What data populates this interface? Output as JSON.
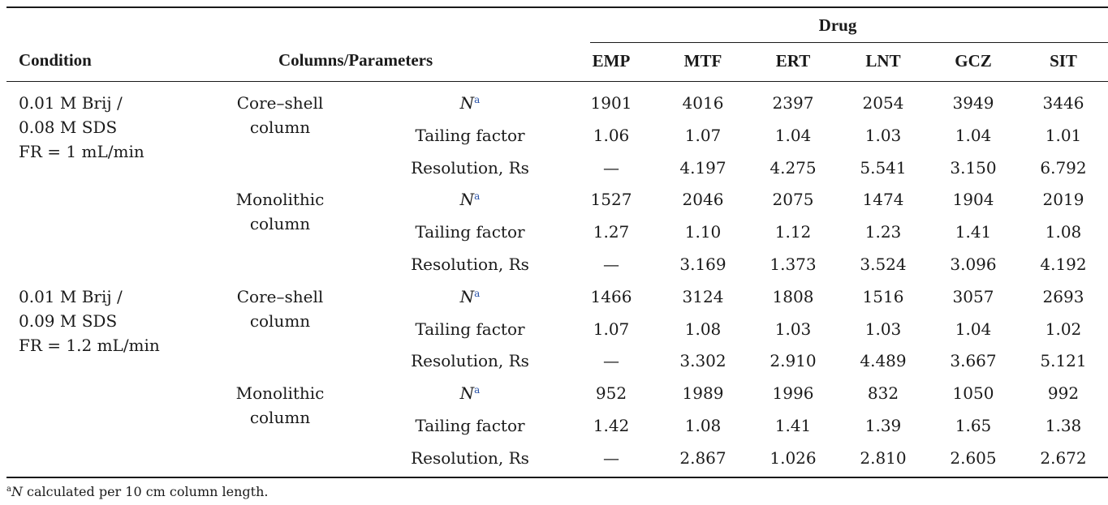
{
  "header": {
    "condition": "Condition",
    "columns_parameters": "Columns/Parameters",
    "drug": "Drug",
    "drugs": [
      "EMP",
      "MTF",
      "ERT",
      "LNT",
      "GCZ",
      "SIT"
    ]
  },
  "groups": [
    {
      "condition_lines": [
        "0.01 M Brij /",
        "0.08 M SDS",
        "FR = 1 mL/min"
      ],
      "columns": [
        {
          "name_lines": [
            "Core–shell",
            "column"
          ],
          "params": [
            {
              "label": "N",
              "sup": "a",
              "values": [
                "1901",
                "4016",
                "2397",
                "2054",
                "3949",
                "3446"
              ]
            },
            {
              "label": "Tailing factor",
              "values": [
                "1.06",
                "1.07",
                "1.04",
                "1.03",
                "1.04",
                "1.01"
              ]
            },
            {
              "label": "Resolution, Rs",
              "values": [
                "—",
                "4.197",
                "4.275",
                "5.541",
                "3.150",
                "6.792"
              ]
            }
          ]
        },
        {
          "name_lines": [
            "Monolithic",
            "column"
          ],
          "params": [
            {
              "label": "N",
              "sup": "a",
              "values": [
                "1527",
                "2046",
                "2075",
                "1474",
                "1904",
                "2019"
              ]
            },
            {
              "label": "Tailing factor",
              "values": [
                "1.27",
                "1.10",
                "1.12",
                "1.23",
                "1.41",
                "1.08"
              ]
            },
            {
              "label": "Resolution, Rs",
              "values": [
                "—",
                "3.169",
                "1.373",
                "3.524",
                "3.096",
                "4.192"
              ]
            }
          ]
        }
      ]
    },
    {
      "condition_lines": [
        "0.01 M Brij /",
        "0.09 M SDS",
        "FR = 1.2 mL/min"
      ],
      "columns": [
        {
          "name_lines": [
            "Core–shell",
            "column"
          ],
          "params": [
            {
              "label": "N",
              "sup": "a",
              "values": [
                "1466",
                "3124",
                "1808",
                "1516",
                "3057",
                "2693"
              ]
            },
            {
              "label": "Tailing factor",
              "values": [
                "1.07",
                "1.08",
                "1.03",
                "1.03",
                "1.04",
                "1.02"
              ]
            },
            {
              "label": "Resolution, Rs",
              "values": [
                "—",
                "3.302",
                "2.910",
                "4.489",
                "3.667",
                "5.121"
              ]
            }
          ]
        },
        {
          "name_lines": [
            "Monolithic",
            "column"
          ],
          "params": [
            {
              "label": "N",
              "sup": "a",
              "values": [
                "952",
                "1989",
                "1996",
                "832",
                "1050",
                "992"
              ]
            },
            {
              "label": "Tailing factor",
              "values": [
                "1.42",
                "1.08",
                "1.41",
                "1.39",
                "1.65",
                "1.38"
              ]
            },
            {
              "label": "Resolution, Rs",
              "values": [
                "—",
                "2.867",
                "1.026",
                "2.810",
                "2.605",
                "2.672"
              ]
            }
          ]
        }
      ]
    }
  ],
  "footnote": {
    "marker": "a",
    "symbol": "N",
    "text": " calculated per 10 cm column length."
  }
}
